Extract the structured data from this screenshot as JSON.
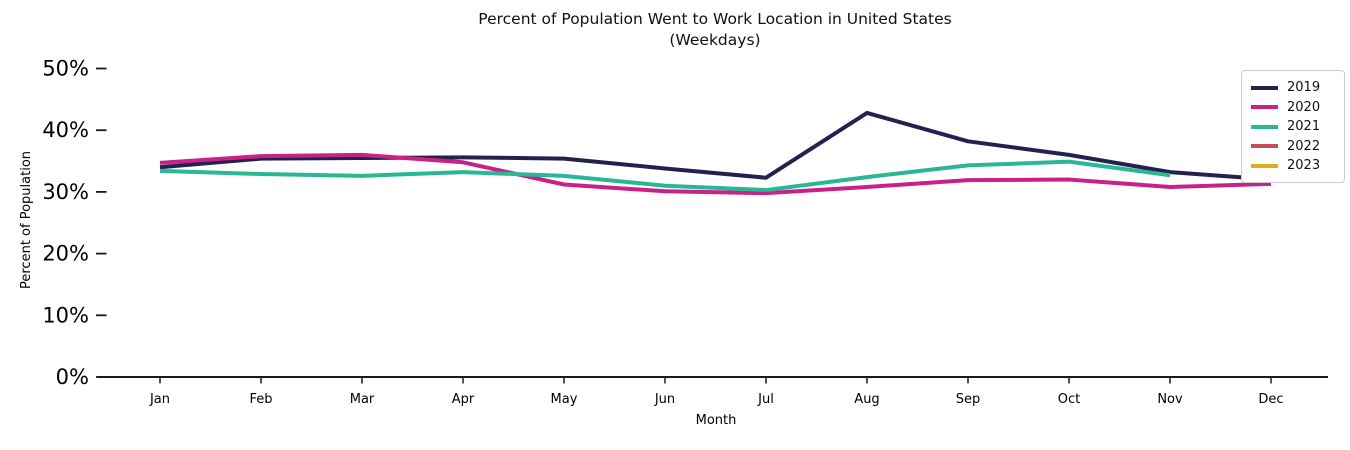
{
  "title": {
    "line1": "Percent of Population Went to Work Location in United States",
    "line2": "(Weekdays)"
  },
  "chart_data": {
    "type": "line",
    "title": "Percent of Population Went to Work Location in United States (Weekdays)",
    "xlabel": "Month",
    "ylabel": "Percent of Population",
    "x": [
      "Jan",
      "Feb",
      "Mar",
      "Apr",
      "May",
      "Jun",
      "Jul",
      "Aug",
      "Sep",
      "Oct",
      "Nov",
      "Dec"
    ],
    "y_ticks": [
      0,
      10,
      20,
      30,
      40,
      50
    ],
    "y_tick_labels": [
      "0%",
      "10%",
      "20%",
      "30%",
      "40%",
      "50%"
    ],
    "ylim": [
      0,
      52
    ],
    "grid": false,
    "legend_position": "upper right",
    "series": [
      {
        "name": "2019",
        "color": "#23224e",
        "values": [
          34.0,
          35.4,
          35.5,
          35.6,
          35.4,
          33.8,
          32.3,
          42.8,
          38.2,
          36.0,
          33.2,
          32.0
        ]
      },
      {
        "name": "2020",
        "color": "#c9208a",
        "values": [
          34.7,
          35.8,
          36.0,
          34.8,
          31.2,
          30.1,
          29.8,
          30.8,
          31.9,
          32.0,
          30.8,
          31.3
        ]
      },
      {
        "name": "2021",
        "color": "#29b794",
        "values": [
          33.4,
          32.9,
          32.6,
          33.2,
          32.6,
          31.0,
          30.3,
          32.4,
          34.3,
          34.9,
          32.7,
          null
        ]
      },
      {
        "name": "2022",
        "color": "#c44e52",
        "values": [
          null,
          null,
          null,
          null,
          null,
          null,
          null,
          null,
          null,
          null,
          null,
          null
        ]
      },
      {
        "name": "2023",
        "color": "#dfac20",
        "values": [
          null,
          null,
          null,
          null,
          null,
          null,
          null,
          null,
          null,
          null,
          null,
          null
        ]
      }
    ]
  }
}
